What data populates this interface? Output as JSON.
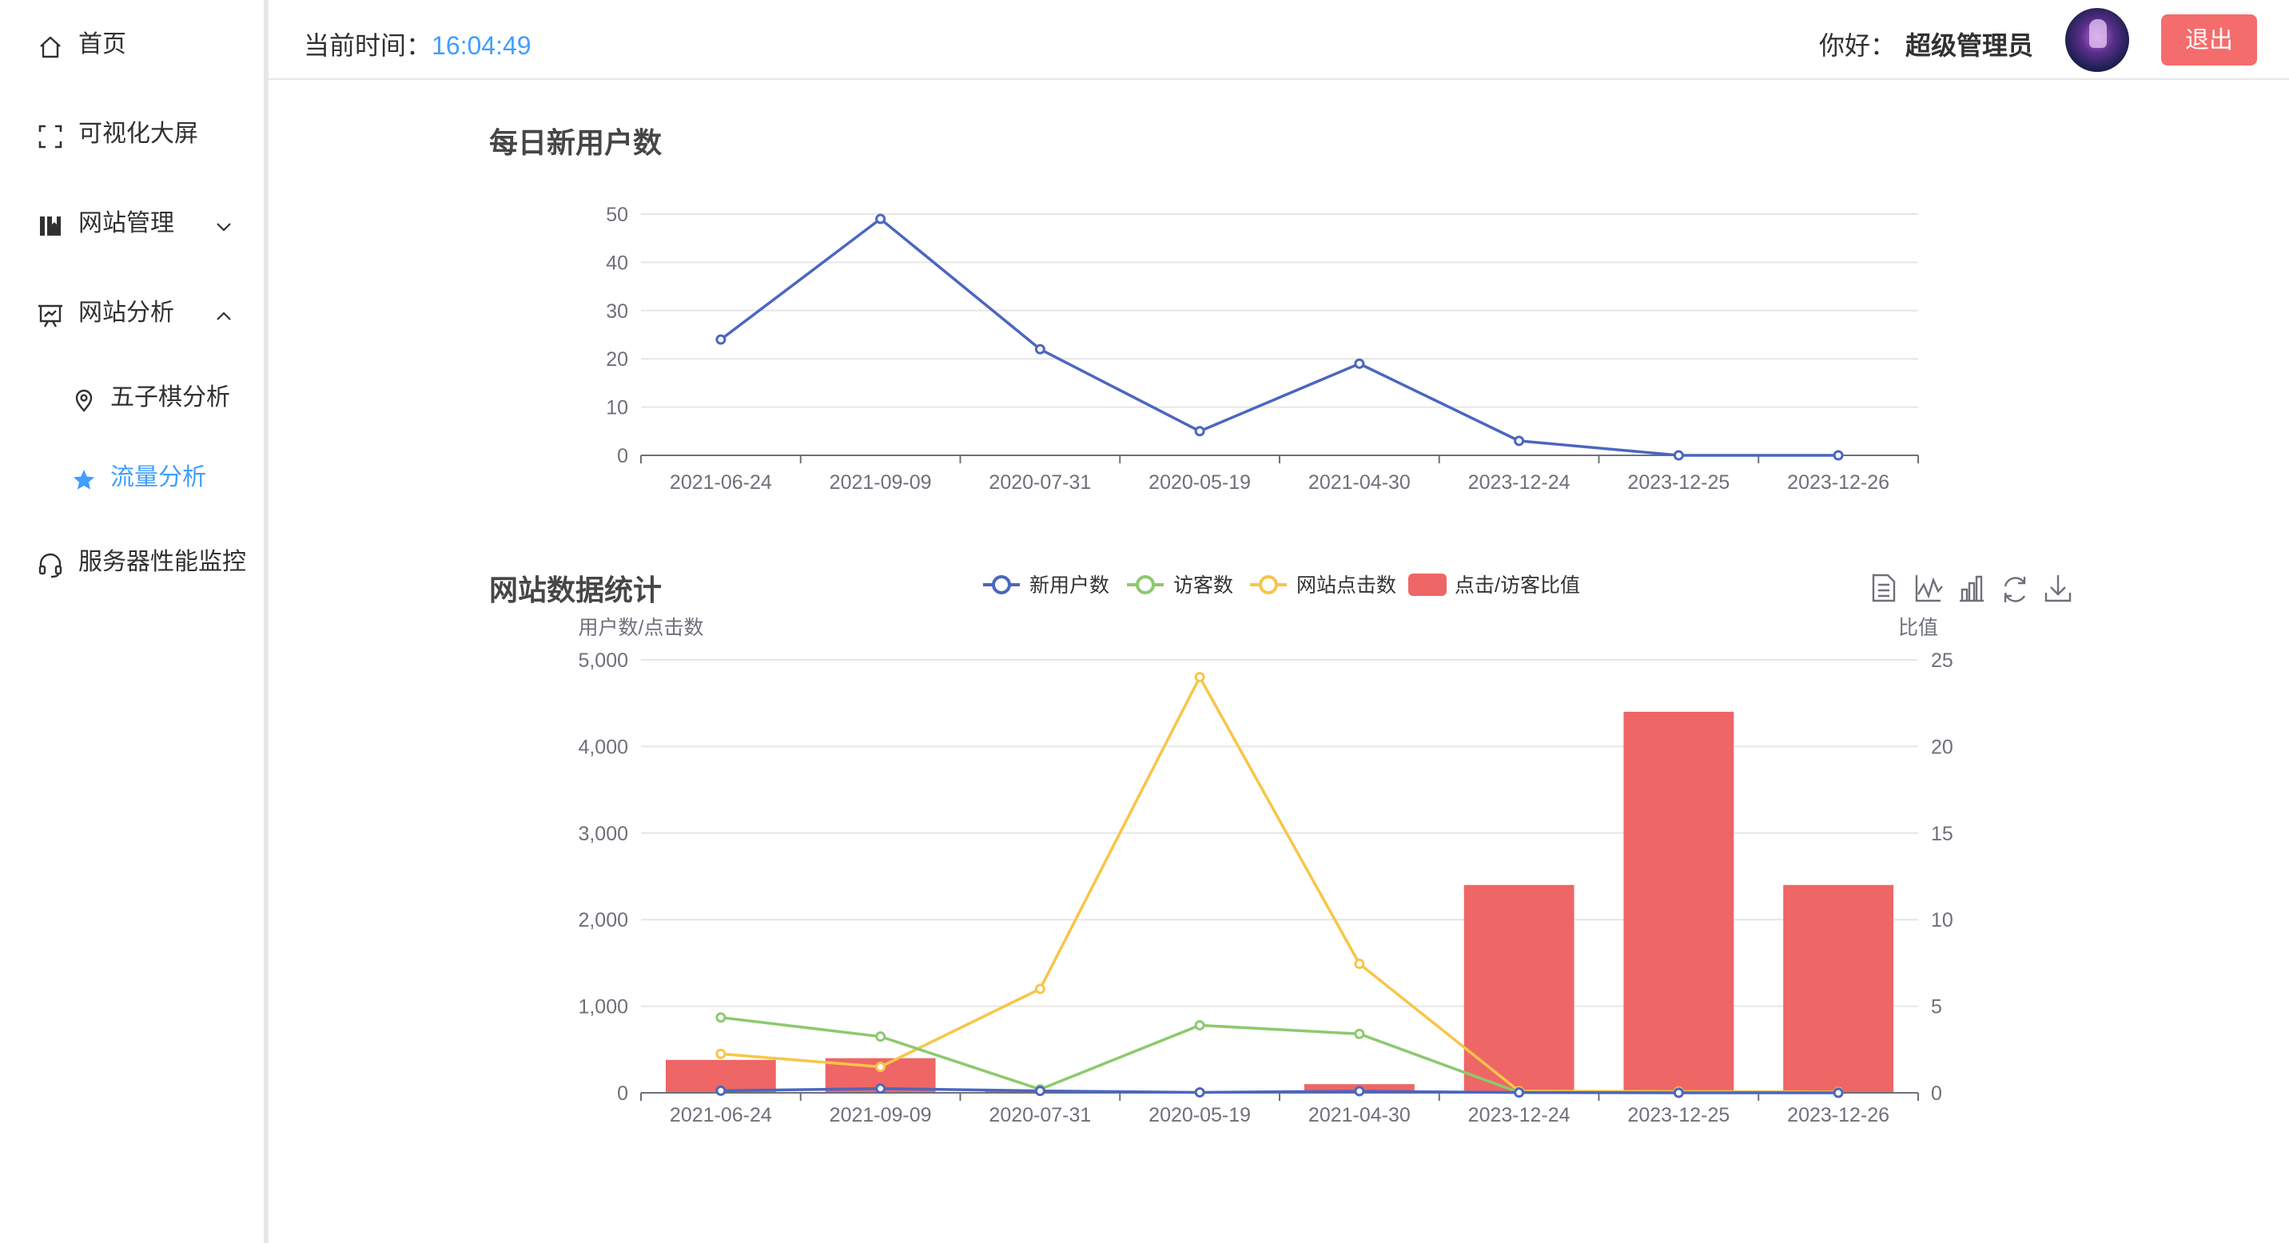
{
  "sidebar": {
    "items": [
      {
        "label": "首页",
        "icon": "home-icon"
      },
      {
        "label": "可视化大屏",
        "icon": "fullscreen-icon"
      },
      {
        "label": "网站管理",
        "icon": "notebook-icon",
        "chevron": "down"
      },
      {
        "label": "网站分析",
        "icon": "presentation-icon",
        "chevron": "up"
      },
      {
        "label": "五子棋分析",
        "icon": "location-icon"
      },
      {
        "label": "流量分析",
        "icon": "star-icon",
        "active": true
      },
      {
        "label": "服务器性能监控",
        "icon": "headset-icon"
      }
    ],
    "active_color": "#409eff"
  },
  "header": {
    "time_label": "当前时间：",
    "time_value": "16:04:49",
    "greeting": "你好：",
    "username": "超级管理员",
    "logout_label": "退出",
    "logout_color": "#f56c6c"
  },
  "chart_data": [
    {
      "type": "line",
      "title": "每日新用户数",
      "categories": [
        "2021-06-24",
        "2021-09-09",
        "2020-07-31",
        "2020-05-19",
        "2021-04-30",
        "2023-12-24",
        "2023-12-25",
        "2023-12-26"
      ],
      "series": [
        {
          "values": [
            24,
            49,
            22,
            5,
            19,
            3,
            0,
            0
          ],
          "color": "#4b66c0"
        }
      ],
      "ylim": [
        0,
        50
      ],
      "yticks": [
        "0",
        "10",
        "20",
        "30",
        "40",
        "50"
      ],
      "grid": true,
      "legend": "none"
    },
    {
      "type": "bar",
      "title": "网站数据统计",
      "categories": [
        "2021-06-24",
        "2021-09-09",
        "2020-07-31",
        "2020-05-19",
        "2021-04-30",
        "2023-12-24",
        "2023-12-25",
        "2023-12-26"
      ],
      "ylabel": "用户数/点击数",
      "y2label": "比值",
      "ylim": [
        0,
        5000
      ],
      "y2lim": [
        0,
        25
      ],
      "yticks": [
        "0",
        "1,000",
        "2,000",
        "3,000",
        "4,000",
        "5,000"
      ],
      "y2ticks": [
        "0",
        "5",
        "10",
        "15",
        "20",
        "25"
      ],
      "series": [
        {
          "name": "新用户数",
          "kind": "line",
          "axis": "left",
          "color": "#4b66c0",
          "values": [
            24,
            49,
            22,
            5,
            19,
            3,
            0,
            0
          ]
        },
        {
          "name": "访客数",
          "kind": "line",
          "axis": "left",
          "color": "#8dc96e",
          "values": [
            870,
            650,
            40,
            780,
            680,
            5,
            5,
            5
          ]
        },
        {
          "name": "网站点击数",
          "kind": "line",
          "axis": "left",
          "color": "#f8c547",
          "values": [
            450,
            300,
            1200,
            4800,
            1490,
            20,
            15,
            10
          ]
        },
        {
          "name": "点击/访客比值",
          "kind": "bar",
          "axis": "right",
          "color": "#ee6666",
          "values": [
            1.9,
            2.0,
            0.1,
            0.05,
            0.5,
            12,
            22,
            12
          ]
        }
      ],
      "legend": "top-center",
      "toolbox": [
        "data-view-icon",
        "line-chart-icon",
        "bar-chart-icon",
        "restore-icon",
        "download-icon"
      ],
      "grid": true
    }
  ]
}
